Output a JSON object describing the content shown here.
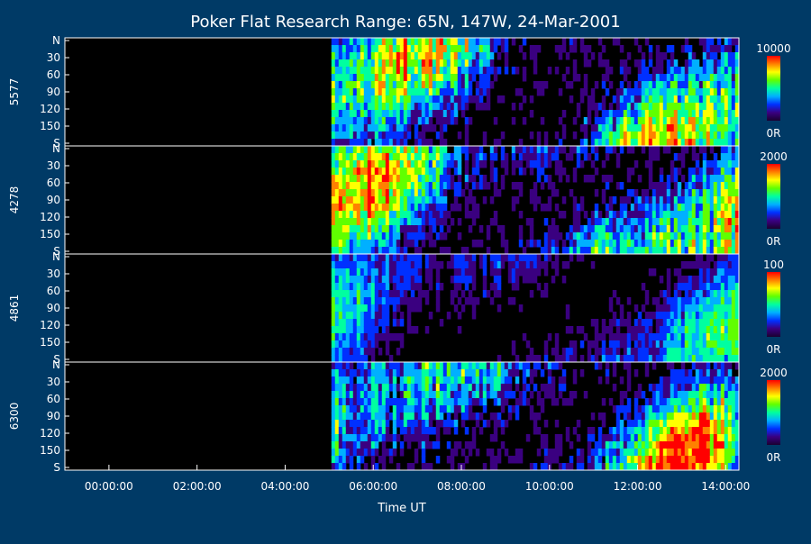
{
  "chart_data": {
    "type": "heatmap",
    "title": "Poker Flat Research Range: 65N, 147W, 24-Mar-2001",
    "xlabel": "Time UT",
    "x_ticks": [
      "00:00:00",
      "02:00:00",
      "04:00:00",
      "06:00:00",
      "08:00:00",
      "10:00:00",
      "12:00:00",
      "14:00:00"
    ],
    "x_tick_hours": [
      0,
      2,
      4,
      6,
      8,
      10,
      12,
      14
    ],
    "xlim_hours": [
      -1.0,
      14.3
    ],
    "data_start_hour": 5.05,
    "y_ticks": [
      "N",
      "30",
      "60",
      "90",
      "120",
      "150",
      "S"
    ],
    "y_tick_values": [
      0,
      30,
      60,
      90,
      120,
      150,
      180
    ],
    "ylim": [
      0,
      180
    ],
    "colormap": [
      "#1a0030",
      "#3a0080",
      "#0030ff",
      "#00b0ff",
      "#00ffa0",
      "#60ff00",
      "#ffff00",
      "#ff8000",
      "#ff0000"
    ],
    "panels": [
      {
        "label": "5577",
        "cbar_max": "10000",
        "cbar_min": "0R"
      },
      {
        "label": "4278",
        "cbar_max": "2000",
        "cbar_min": "0R"
      },
      {
        "label": "4861",
        "cbar_max": "100",
        "cbar_min": "0R"
      },
      {
        "label": "6300",
        "cbar_max": "2000",
        "cbar_min": "0R"
      }
    ]
  }
}
